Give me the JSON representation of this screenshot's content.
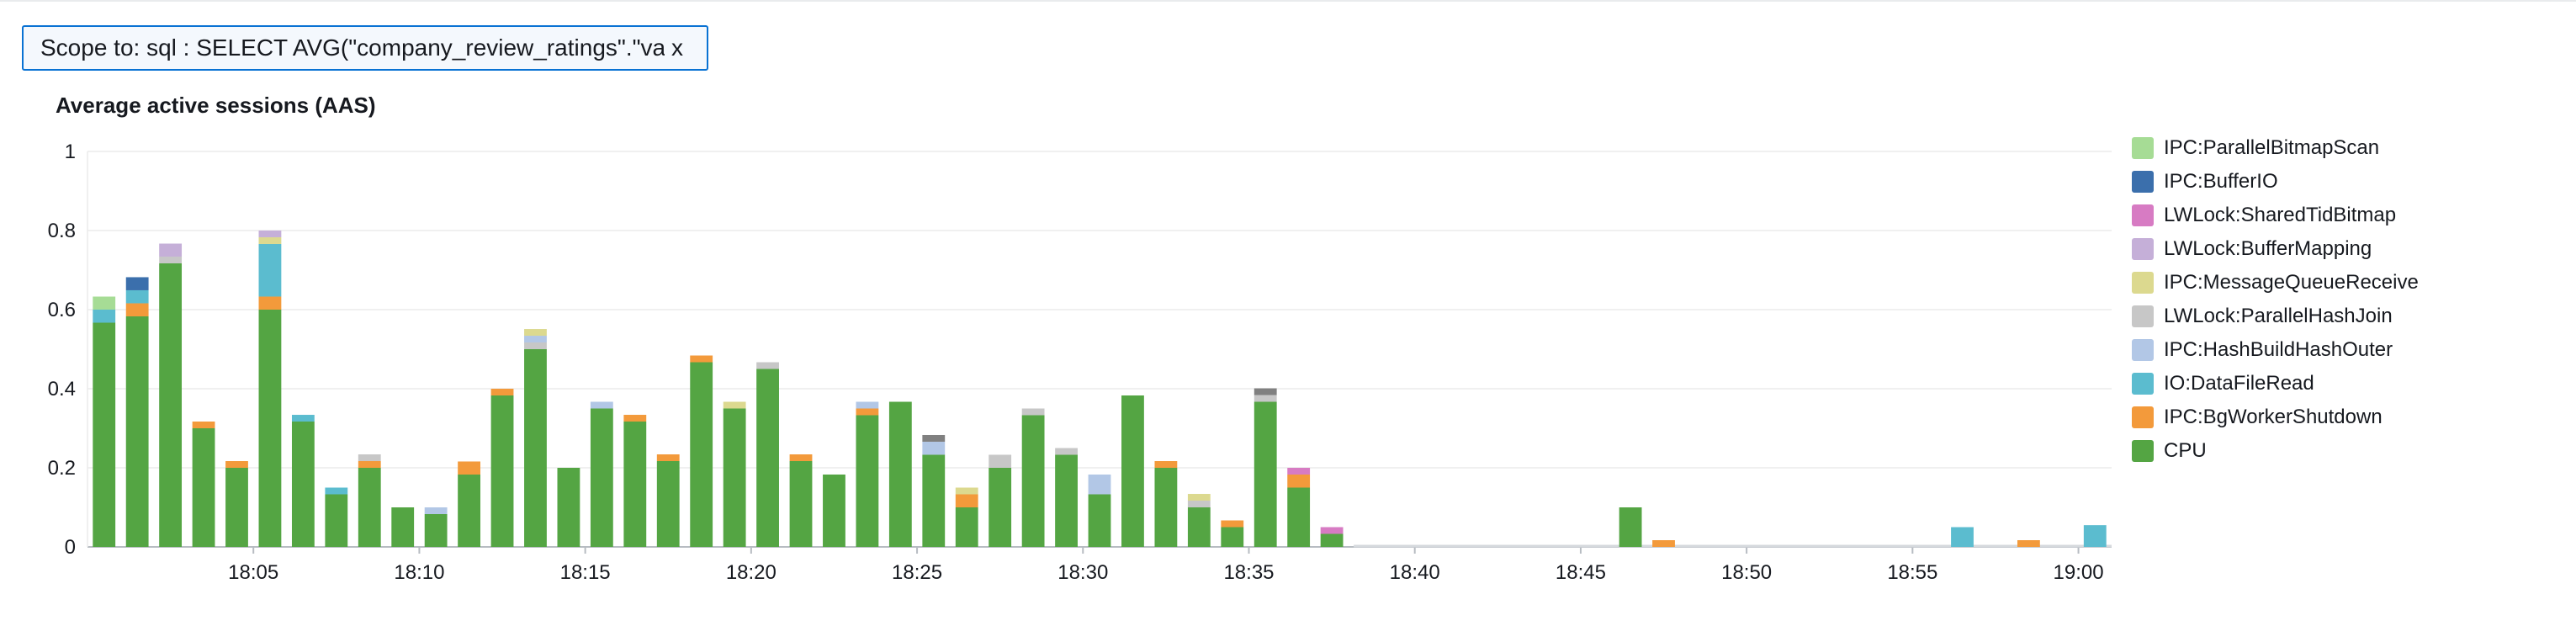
{
  "scope": {
    "label": "Scope to: sql : SELECT AVG(\"company_review_ratings\".\"val...",
    "close_label": "x"
  },
  "chart_data": {
    "type": "bar",
    "stacked": true,
    "title": "Average active sessions (AAS)",
    "ylim": [
      0,
      1
    ],
    "y_ticks": [
      0,
      0.2,
      0.4,
      0.6,
      0.8,
      1
    ],
    "y_tick_labels": [
      "0",
      "0.2",
      "0.4",
      "0.6",
      "0.8",
      "1"
    ],
    "x_range_minutes": [
      0,
      61
    ],
    "x_ticks": [
      {
        "minute": 4.5,
        "label": "18:05"
      },
      {
        "minute": 9.5,
        "label": "18:10"
      },
      {
        "minute": 14.5,
        "label": "18:15"
      },
      {
        "minute": 19.5,
        "label": "18:20"
      },
      {
        "minute": 24.5,
        "label": "18:25"
      },
      {
        "minute": 29.5,
        "label": "18:30"
      },
      {
        "minute": 34.5,
        "label": "18:35"
      },
      {
        "minute": 39.5,
        "label": "18:40"
      },
      {
        "minute": 44.5,
        "label": "18:45"
      },
      {
        "minute": 49.5,
        "label": "18:50"
      },
      {
        "minute": 54.5,
        "label": "18:55"
      },
      {
        "minute": 59.5,
        "label": "19:00"
      }
    ],
    "legend_position": "right",
    "grid": true,
    "series": [
      {
        "name": "IPC:ParallelBitmapScan",
        "color": "#a6dc95"
      },
      {
        "name": "IPC:BufferIO",
        "color": "#3b6fac"
      },
      {
        "name": "LWLock:SharedTidBitmap",
        "color": "#d77bc3"
      },
      {
        "name": "LWLock:BufferMapping",
        "color": "#c5afd8"
      },
      {
        "name": "IPC:MessageQueueReceive",
        "color": "#dcd98f"
      },
      {
        "name": "LWLock:ParallelHashJoin",
        "color": "#c7c7c7"
      },
      {
        "name": "IPC:HashBuildHashOuter",
        "color": "#b2c7e6"
      },
      {
        "name": "IO:DataFileRead",
        "color": "#5bbccf"
      },
      {
        "name": "IPC:BgWorkerShutdown",
        "color": "#f39a3b"
      },
      {
        "name": "CPU",
        "color": "#54a543"
      }
    ],
    "extra_colors": {
      "dark-gray": "#808080"
    },
    "bars": [
      {
        "m": 0,
        "s": [
          [
            "CPU",
            0.567
          ],
          [
            "IO:DataFileRead",
            0.033
          ],
          [
            "LWLock:ParallelHashJoin",
            0.0
          ],
          [
            "IPC:ParallelBitmapScan",
            0.033
          ]
        ]
      },
      {
        "m": 1,
        "s": [
          [
            "CPU",
            0.583
          ],
          [
            "IPC:BgWorkerShutdown",
            0.033
          ],
          [
            "IO:DataFileRead",
            0.033
          ],
          [
            "IPC:BufferIO",
            0.033
          ]
        ]
      },
      {
        "m": 2,
        "s": [
          [
            "CPU",
            0.717
          ],
          [
            "LWLock:ParallelHashJoin",
            0.017
          ],
          [
            "LWLock:BufferMapping",
            0.033
          ]
        ]
      },
      {
        "m": 3,
        "s": [
          [
            "CPU",
            0.3
          ],
          [
            "IPC:BgWorkerShutdown",
            0.017
          ]
        ]
      },
      {
        "m": 4,
        "s": [
          [
            "CPU",
            0.2
          ],
          [
            "IPC:BgWorkerShutdown",
            0.017
          ]
        ]
      },
      {
        "m": 5,
        "s": [
          [
            "CPU",
            0.6
          ],
          [
            "IPC:BgWorkerShutdown",
            0.033
          ],
          [
            "IO:DataFileRead",
            0.133
          ],
          [
            "IPC:MessageQueueReceive",
            0.017
          ],
          [
            "LWLock:BufferMapping",
            0.017
          ]
        ]
      },
      {
        "m": 6,
        "s": [
          [
            "CPU",
            0.317
          ],
          [
            "IO:DataFileRead",
            0.017
          ]
        ]
      },
      {
        "m": 7,
        "s": [
          [
            "CPU",
            0.133
          ],
          [
            "IO:DataFileRead",
            0.017
          ]
        ]
      },
      {
        "m": 8,
        "s": [
          [
            "CPU",
            0.2
          ],
          [
            "IPC:BgWorkerShutdown",
            0.017
          ],
          [
            "LWLock:ParallelHashJoin",
            0.017
          ]
        ]
      },
      {
        "m": 9,
        "s": [
          [
            "CPU",
            0.1
          ]
        ]
      },
      {
        "m": 10,
        "s": [
          [
            "CPU",
            0.083
          ],
          [
            "IPC:HashBuildHashOuter",
            0.017
          ]
        ]
      },
      {
        "m": 11,
        "s": [
          [
            "CPU",
            0.183
          ],
          [
            "IPC:BgWorkerShutdown",
            0.033
          ]
        ]
      },
      {
        "m": 12,
        "s": [
          [
            "CPU",
            0.383
          ],
          [
            "IPC:BgWorkerShutdown",
            0.017
          ]
        ]
      },
      {
        "m": 13,
        "s": [
          [
            "CPU",
            0.5
          ],
          [
            "LWLock:ParallelHashJoin",
            0.017
          ],
          [
            "IPC:HashBuildHashOuter",
            0.017
          ],
          [
            "IPC:MessageQueueReceive",
            0.017
          ]
        ]
      },
      {
        "m": 14,
        "s": [
          [
            "CPU",
            0.2
          ]
        ]
      },
      {
        "m": 15,
        "s": [
          [
            "CPU",
            0.35
          ],
          [
            "IPC:HashBuildHashOuter",
            0.017
          ]
        ]
      },
      {
        "m": 16,
        "s": [
          [
            "CPU",
            0.317
          ],
          [
            "IPC:BgWorkerShutdown",
            0.017
          ]
        ]
      },
      {
        "m": 17,
        "s": [
          [
            "CPU",
            0.217
          ],
          [
            "IPC:BgWorkerShutdown",
            0.017
          ]
        ]
      },
      {
        "m": 18,
        "s": [
          [
            "CPU",
            0.467
          ],
          [
            "IPC:BgWorkerShutdown",
            0.017
          ]
        ]
      },
      {
        "m": 19,
        "s": [
          [
            "CPU",
            0.35
          ],
          [
            "IPC:MessageQueueReceive",
            0.017
          ]
        ]
      },
      {
        "m": 20,
        "s": [
          [
            "CPU",
            0.45
          ],
          [
            "LWLock:ParallelHashJoin",
            0.017
          ]
        ]
      },
      {
        "m": 21,
        "s": [
          [
            "CPU",
            0.217
          ],
          [
            "IPC:BgWorkerShutdown",
            0.017
          ]
        ]
      },
      {
        "m": 22,
        "s": [
          [
            "CPU",
            0.183
          ]
        ]
      },
      {
        "m": 23,
        "s": [
          [
            "CPU",
            0.333
          ],
          [
            "IPC:BgWorkerShutdown",
            0.017
          ],
          [
            "IPC:HashBuildHashOuter",
            0.017
          ]
        ]
      },
      {
        "m": 24,
        "s": [
          [
            "CPU",
            0.367
          ]
        ]
      },
      {
        "m": 25,
        "s": [
          [
            "CPU",
            0.233
          ],
          [
            "IPC:HashBuildHashOuter",
            0.033
          ],
          [
            "dark-gray",
            0.017
          ]
        ]
      },
      {
        "m": 26,
        "s": [
          [
            "CPU",
            0.1
          ],
          [
            "IPC:BgWorkerShutdown",
            0.033
          ],
          [
            "IPC:MessageQueueReceive",
            0.017
          ]
        ]
      },
      {
        "m": 27,
        "s": [
          [
            "CPU",
            0.2
          ],
          [
            "LWLock:ParallelHashJoin",
            0.033
          ]
        ]
      },
      {
        "m": 28,
        "s": [
          [
            "CPU",
            0.333
          ],
          [
            "LWLock:ParallelHashJoin",
            0.017
          ]
        ]
      },
      {
        "m": 29,
        "s": [
          [
            "CPU",
            0.233
          ],
          [
            "LWLock:ParallelHashJoin",
            0.017
          ]
        ]
      },
      {
        "m": 30,
        "s": [
          [
            "CPU",
            0.133
          ],
          [
            "IPC:HashBuildHashOuter",
            0.05
          ]
        ]
      },
      {
        "m": 31,
        "s": [
          [
            "CPU",
            0.383
          ]
        ]
      },
      {
        "m": 32,
        "s": [
          [
            "CPU",
            0.2
          ],
          [
            "IPC:BgWorkerShutdown",
            0.017
          ]
        ]
      },
      {
        "m": 33,
        "s": [
          [
            "CPU",
            0.1
          ],
          [
            "LWLock:ParallelHashJoin",
            0.017
          ],
          [
            "IPC:MessageQueueReceive",
            0.017
          ]
        ]
      },
      {
        "m": 34,
        "s": [
          [
            "CPU",
            0.05
          ],
          [
            "IPC:BgWorkerShutdown",
            0.017
          ]
        ]
      },
      {
        "m": 35,
        "s": [
          [
            "CPU",
            0.367
          ],
          [
            "LWLock:ParallelHashJoin",
            0.017
          ],
          [
            "dark-gray",
            0.017
          ]
        ]
      },
      {
        "m": 36,
        "s": [
          [
            "CPU",
            0.15
          ],
          [
            "IPC:BgWorkerShutdown",
            0.033
          ],
          [
            "LWLock:BufferMapping",
            0.0
          ],
          [
            "LWLock:SharedTidBitmap",
            0.017
          ]
        ]
      },
      {
        "m": 37,
        "s": [
          [
            "CPU",
            0.033
          ],
          [
            "LWLock:ParallelHashJoin",
            0.0
          ],
          [
            "LWLock:SharedTidBitmap",
            0.017
          ]
        ]
      },
      {
        "m": 46,
        "s": [
          [
            "CPU",
            0.1
          ]
        ]
      },
      {
        "m": 47,
        "s": [
          [
            "IPC:BgWorkerShutdown",
            0.017
          ]
        ]
      },
      {
        "m": 56,
        "s": [
          [
            "IO:DataFileRead",
            0.05
          ]
        ]
      },
      {
        "m": 58,
        "s": [
          [
            "IPC:BgWorkerShutdown",
            0.017
          ]
        ]
      },
      {
        "m": 60,
        "s": [
          [
            "IO:DataFileRead",
            0.055
          ]
        ]
      }
    ],
    "baseline_from_minute": 38
  }
}
